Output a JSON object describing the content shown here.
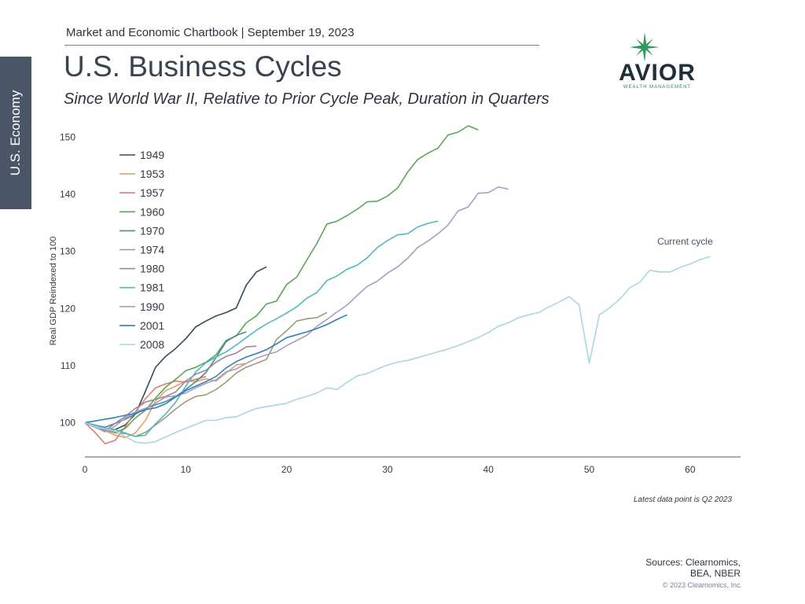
{
  "header": {
    "chartbook": "Market and Economic Chartbook | September 19, 2023",
    "side_tab": "U.S. Economy"
  },
  "logo": {
    "name": "AVIOR",
    "sub": "WEALTH MANAGEMENT",
    "star_color": "#2e9a5e",
    "text_color": "#1e2f3a"
  },
  "chart_data": {
    "type": "line",
    "title": "U.S. Business Cycles",
    "subtitle": "Since World War II, Relative to Prior Cycle Peak, Duration in Quarters",
    "xlabel": "",
    "ylabel": "Real GDP Reindexed to 100",
    "xlim": [
      0,
      65
    ],
    "ylim": [
      94,
      152
    ],
    "x_ticks": [
      0,
      10,
      20,
      30,
      40,
      50,
      60
    ],
    "y_ticks": [
      100,
      110,
      120,
      130,
      140,
      150
    ],
    "legend_position": "top-left",
    "grid": false,
    "series": [
      {
        "name": "1949",
        "color": "#34495e",
        "values": [
          100,
          99.2,
          98.5,
          98.8,
          99.6,
          101.5,
          105.5,
          109.7,
          111.6,
          113,
          114.7,
          116.8,
          117.8,
          118.7,
          119.3,
          120.1,
          124.1,
          126.4,
          127.3
        ]
      },
      {
        "name": "1953",
        "color": "#e0a26c",
        "values": [
          100,
          99.4,
          98.6,
          97.8,
          97.4,
          98.2,
          100.4,
          103.8,
          105.6,
          106.4,
          107.3,
          107.2,
          107.7,
          107.3,
          108.7,
          110.1,
          110.4
        ]
      },
      {
        "name": "1957",
        "color": "#e07b73",
        "values": [
          100,
          98.3,
          96.3,
          96.9,
          99.3,
          101.9,
          104.2,
          106.1,
          106.8,
          107.3,
          107.1,
          107.6,
          108.1
        ]
      },
      {
        "name": "1960",
        "color": "#5aa65a",
        "values": [
          100,
          99.5,
          98.8,
          98.3,
          99,
          100.8,
          102.2,
          104.3,
          106.2,
          107.6,
          109.1,
          109.7,
          110.6,
          111.9,
          114.4,
          115.2,
          117.5,
          118.7,
          120.8,
          121.3,
          124.2,
          125.5,
          128.5,
          131.4,
          134.8,
          135.3,
          136.3,
          137.4,
          138.7,
          138.8,
          139.7,
          141.1,
          143.9,
          146.1,
          147.2,
          148.1,
          150.4,
          150.9,
          152,
          151.3
        ]
      },
      {
        "name": "1970",
        "color": "#4f8a8f",
        "values": [
          100,
          99.6,
          99.2,
          99.9,
          100.6,
          101.5,
          102.5,
          103.1,
          103.7,
          104.6,
          105.8,
          107.2,
          108.8,
          111.4,
          114.2,
          115.3,
          115.9
        ]
      },
      {
        "name": "1974",
        "color": "#a4987a",
        "values": [
          100,
          99.3,
          98.7,
          98.2,
          98.1,
          97.6,
          98.3,
          99.6,
          100.9,
          102.4,
          103.7,
          104.6,
          104.9,
          105.8,
          107.1,
          108.7,
          109.7,
          110.4,
          111.1,
          114.6,
          116.1,
          117.8,
          118.2,
          118.4,
          119.3
        ]
      },
      {
        "name": "1980",
        "color": "#9a8899",
        "values": [
          100,
          99.4,
          98.6,
          99.9,
          101.1,
          102.5,
          103.6,
          104.1,
          104.6,
          105.4,
          107.3,
          108.5,
          109.2,
          110.6,
          111.6,
          112.2,
          113.3,
          113.4
        ]
      },
      {
        "name": "1981",
        "color": "#4fb8c2",
        "values": [
          100,
          99.6,
          99,
          98.8,
          98.2,
          97.6,
          97.8,
          99.8,
          101.5,
          103.6,
          106.4,
          108.9,
          110.5,
          111.5,
          112.4,
          113.6,
          114.9,
          116.2,
          117.3,
          118.2,
          119.2,
          120.3,
          121.8,
          122.8,
          124.9,
          125.7,
          126.9,
          127.6,
          128.9,
          130.7,
          131.9,
          132.9,
          133.1,
          134.3,
          134.9,
          135.3
        ]
      },
      {
        "name": "1990",
        "color": "#a79cc5",
        "values": [
          100,
          99.2,
          98.4,
          99.4,
          100.8,
          101.9,
          102.5,
          103.4,
          104.5,
          104.7,
          105.2,
          106.1,
          106.9,
          107.5,
          108.9,
          109.4,
          110.4,
          111.3,
          111.9,
          112.4,
          113.5,
          114.4,
          115.3,
          116.9,
          118.1,
          119.4,
          120.6,
          122.3,
          123.9,
          124.8,
          126.2,
          127.3,
          128.8,
          130.7,
          131.8,
          133.1,
          134.6,
          137.1,
          137.8,
          140.2,
          140.3,
          141.3,
          140.9
        ]
      },
      {
        "name": "2001",
        "color": "#3180ba",
        "values": [
          100,
          100.3,
          100.6,
          100.9,
          101.3,
          101.6,
          102.3,
          102.6,
          103.3,
          104.5,
          105.6,
          106.4,
          107.2,
          108.1,
          109.6,
          110.7,
          111.5,
          112.1,
          112.8,
          113.8,
          114.9,
          115.4,
          115.9,
          116.5,
          117.2,
          118.1,
          118.9
        ]
      },
      {
        "name": "2008",
        "color": "#a8d6e3",
        "values": [
          100,
          99.3,
          98.9,
          98.5,
          97.6,
          96.6,
          96.4,
          96.7,
          97.5,
          98.3,
          99,
          99.7,
          100.4,
          100.4,
          100.9,
          101,
          101.8,
          102.5,
          102.8,
          103.1,
          103.4,
          104.1,
          104.6,
          105.2,
          106.1,
          105.8,
          107.1,
          108.2,
          108.6,
          109.4,
          110.1,
          110.6,
          110.9,
          111.4,
          111.9,
          112.4,
          112.9,
          113.5,
          114.2,
          114.9,
          115.8,
          116.9,
          117.5,
          118.4,
          118.9,
          119.3,
          120.3,
          121.1,
          122.1,
          120.6,
          110.4,
          118.9,
          120.1,
          121.6,
          123.6,
          124.6,
          126.7,
          126.4,
          126.4,
          127.2,
          127.8,
          128.6,
          129.1
        ]
      }
    ],
    "annotations": [
      {
        "text": "Current cycle",
        "x": 59.5,
        "y": 131.2
      }
    ],
    "footnote": "Latest data point is Q2 2023"
  },
  "footer": {
    "sources_line1": "Sources: Clearnomics,",
    "sources_line2": "BEA, NBER",
    "copyright": "© 2023 Clearnomics, Inc."
  }
}
